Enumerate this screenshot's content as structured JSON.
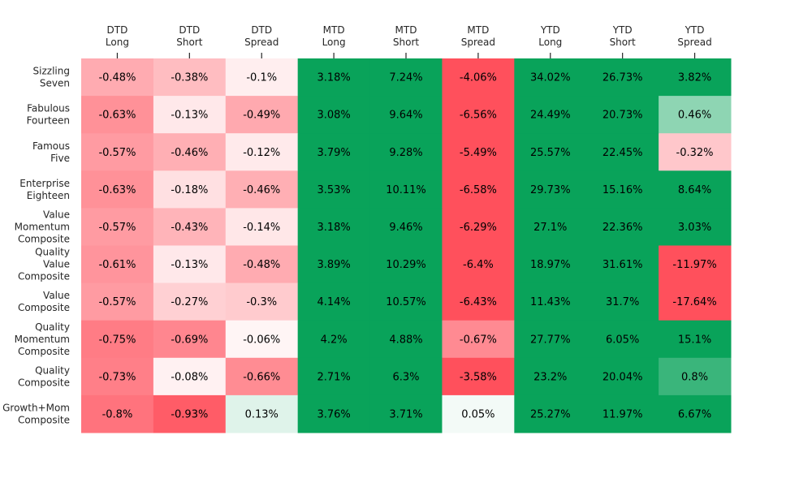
{
  "chart_data": {
    "type": "heatmap",
    "title": "",
    "columns": [
      {
        "line1": "DTD",
        "line2": "Long"
      },
      {
        "line1": "DTD",
        "line2": "Short"
      },
      {
        "line1": "DTD",
        "line2": "Spread"
      },
      {
        "line1": "MTD",
        "line2": "Long"
      },
      {
        "line1": "MTD",
        "line2": "Short"
      },
      {
        "line1": "MTD",
        "line2": "Spread"
      },
      {
        "line1": "YTD",
        "line2": "Long"
      },
      {
        "line1": "YTD",
        "line2": "Short"
      },
      {
        "line1": "YTD",
        "line2": "Spread"
      }
    ],
    "rows": [
      {
        "label": [
          "Sizzling",
          "Seven"
        ],
        "values": [
          -0.48,
          -0.38,
          -0.1,
          3.18,
          7.24,
          -4.06,
          34.02,
          26.73,
          3.82
        ]
      },
      {
        "label": [
          "Fabulous",
          "Fourteen"
        ],
        "values": [
          -0.63,
          -0.13,
          -0.49,
          3.08,
          9.64,
          -6.56,
          24.49,
          20.73,
          0.46
        ]
      },
      {
        "label": [
          "Famous",
          "Five"
        ],
        "values": [
          -0.57,
          -0.46,
          -0.12,
          3.79,
          9.28,
          -5.49,
          25.57,
          22.45,
          -0.32
        ]
      },
      {
        "label": [
          "Enterprise",
          "Eighteen"
        ],
        "values": [
          -0.63,
          -0.18,
          -0.46,
          3.53,
          10.11,
          -6.58,
          29.73,
          15.16,
          8.64
        ]
      },
      {
        "label": [
          "Value",
          "Momentum",
          "Composite"
        ],
        "values": [
          -0.57,
          -0.43,
          -0.14,
          3.18,
          9.46,
          -6.29,
          27.1,
          22.36,
          3.03
        ]
      },
      {
        "label": [
          "Quality",
          "Value",
          "Composite"
        ],
        "values": [
          -0.61,
          -0.13,
          -0.48,
          3.89,
          10.29,
          -6.4,
          18.97,
          31.61,
          -11.97
        ]
      },
      {
        "label": [
          "Value",
          "Composite"
        ],
        "values": [
          -0.57,
          -0.27,
          -0.3,
          4.14,
          10.57,
          -6.43,
          11.43,
          31.7,
          -17.64
        ]
      },
      {
        "label": [
          "Quality",
          "Momentum",
          "Composite"
        ],
        "values": [
          -0.75,
          -0.69,
          -0.06,
          4.2,
          4.88,
          -0.67,
          27.77,
          6.05,
          15.1
        ]
      },
      {
        "label": [
          "Quality",
          "Composite"
        ],
        "values": [
          -0.73,
          -0.08,
          -0.66,
          2.71,
          6.3,
          -3.58,
          23.2,
          20.04,
          0.8
        ]
      },
      {
        "label": [
          "Growth+Mom",
          "Composite"
        ],
        "values": [
          -0.8,
          -0.93,
          0.13,
          3.76,
          3.71,
          0.05,
          25.27,
          11.97,
          6.67
        ]
      }
    ],
    "value_suffix": "%",
    "color_scale": {
      "center": 0,
      "limit": 1,
      "neutral": "#ffffff",
      "positive": "#09a35a",
      "negative": "#ff505c"
    },
    "colorbar": false,
    "grid": false
  }
}
